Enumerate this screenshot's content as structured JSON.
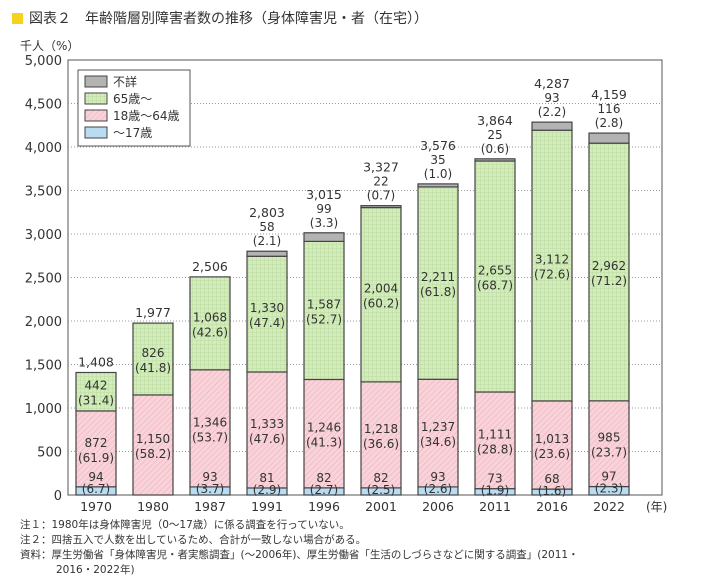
{
  "title": "図表２　年齢階層別障害者数の推移（身体障害児・者（在宅））",
  "chart_data": {
    "type": "bar",
    "stacked": true,
    "title": "図表２　年齢階層別障害者数の推移（身体障害児・者（在宅））",
    "ylabel": "千人（%）",
    "xlabel": "(年)",
    "ylim": [
      0,
      5000
    ],
    "yticks": [
      "0",
      "500",
      "1,000",
      "1,500",
      "2,000",
      "2,500",
      "3,000",
      "3,500",
      "4,000",
      "4,500",
      "5,000"
    ],
    "grid": true,
    "legend_position": "top-left",
    "categories": [
      "1970",
      "1980",
      "1987",
      "1991",
      "1996",
      "2001",
      "2006",
      "2011",
      "2016",
      "2022"
    ],
    "totals": [
      "1,408",
      "1,977",
      "2,506",
      "2,803",
      "3,015",
      "3,327",
      "3,576",
      "3,864",
      "4,287",
      "4,159"
    ],
    "series": [
      {
        "name": "～17歳",
        "color": "#b9dcf3",
        "values": [
          94,
          null,
          93,
          81,
          82,
          82,
          93,
          73,
          68,
          97
        ],
        "labels": [
          "94",
          "",
          "93",
          "81",
          "82",
          "82",
          "93",
          "73",
          "68",
          "97"
        ],
        "pcts": [
          "(6.7)",
          "",
          "(3.7)",
          "(2.9)",
          "(2.7)",
          "(2.5)",
          "(2.6)",
          "(1.9)",
          "(1.6)",
          "(2.3)"
        ]
      },
      {
        "name": "18歳～64歳",
        "color": "#f7c9d2",
        "values": [
          872,
          1150,
          1346,
          1333,
          1246,
          1218,
          1237,
          1111,
          1013,
          985
        ],
        "labels": [
          "872",
          "1,150",
          "1,346",
          "1,333",
          "1,246",
          "1,218",
          "1,237",
          "1,111",
          "1,013",
          "985"
        ],
        "pcts": [
          "(61.9)",
          "(58.2)",
          "(53.7)",
          "(47.6)",
          "(41.3)",
          "(36.6)",
          "(34.6)",
          "(28.8)",
          "(23.6)",
          "(23.7)"
        ]
      },
      {
        "name": "65歳～",
        "color": "#d3ebbd",
        "values": [
          442,
          826,
          1068,
          1330,
          1587,
          2004,
          2211,
          2655,
          3112,
          2962
        ],
        "labels": [
          "442",
          "826",
          "1,068",
          "1,330",
          "1,587",
          "2,004",
          "2,211",
          "2,655",
          "3,112",
          "2,962"
        ],
        "pcts": [
          "(31.4)",
          "(41.8)",
          "(42.6)",
          "(47.4)",
          "(52.7)",
          "(60.2)",
          "(61.8)",
          "(68.7)",
          "(72.6)",
          "(71.2)"
        ]
      },
      {
        "name": "不詳",
        "color": "#b3b3b3",
        "values": [
          null,
          null,
          null,
          58,
          99,
          22,
          35,
          25,
          93,
          116
        ],
        "labels": [
          "",
          "",
          "",
          "58",
          "99",
          "22",
          "35",
          "25",
          "93",
          "116"
        ],
        "pcts": [
          "",
          "",
          "",
          "(2.1)",
          "(3.3)",
          "(0.7)",
          "(1.0)",
          "(0.6)",
          "(2.2)",
          "(2.8)"
        ]
      }
    ]
  },
  "notes": [
    "注１：1980年は身体障害児（0～17歳）に係る調査を行っていない。",
    "注２：四捨五入で人数を出しているため、合計が一致しない場合がある。",
    "資料：厚生労働省「身体障害児・者実態調査」(～2006年)、厚生労働省「生活のしづらさなどに関する調査」(2011・",
    "2016・2022年)"
  ]
}
